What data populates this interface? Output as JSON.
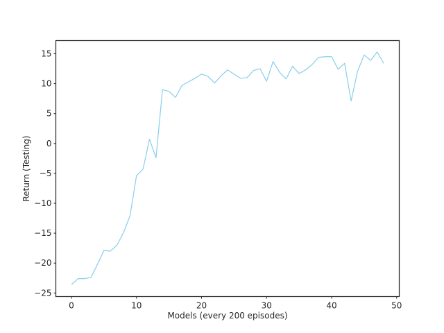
{
  "chart_data": {
    "type": "line",
    "title": "",
    "xlabel": "Models (every 200 episodes)",
    "ylabel": "Return (Testing)",
    "xlim": [
      -2.4,
      50.4
    ],
    "ylim": [
      -25.6,
      17.2
    ],
    "xticks": [
      0,
      10,
      20,
      30,
      40,
      50
    ],
    "yticks": [
      -25,
      -20,
      -15,
      -10,
      -5,
      0,
      5,
      10,
      15
    ],
    "grid": false,
    "legend": "none",
    "line_color": "#87ceeb",
    "series": [
      {
        "x": [
          0,
          1,
          2,
          3,
          4,
          5,
          6,
          7,
          8,
          9,
          10,
          11,
          12,
          13,
          14,
          15,
          16,
          17,
          18,
          19,
          20,
          21,
          22,
          23,
          24,
          25,
          26,
          27,
          28,
          29,
          30,
          31,
          32,
          33,
          34,
          35,
          36,
          37,
          38,
          39,
          40,
          41,
          42,
          43,
          44,
          45,
          46,
          47,
          48
        ],
        "values": [
          -23.6,
          -22.6,
          -22.6,
          -22.4,
          -20.2,
          -17.9,
          -18.0,
          -17.0,
          -14.9,
          -12.1,
          -5.4,
          -4.3,
          0.7,
          -2.4,
          9.0,
          8.7,
          7.7,
          9.7,
          10.3,
          10.9,
          11.6,
          11.2,
          10.1,
          11.3,
          12.3,
          11.6,
          10.9,
          11.0,
          12.2,
          12.5,
          10.4,
          13.7,
          11.9,
          10.8,
          12.9,
          11.7,
          12.3,
          13.2,
          14.4,
          14.5,
          14.5,
          12.4,
          13.4,
          7.1,
          12.1,
          14.8,
          13.9,
          15.3,
          13.4
        ]
      }
    ]
  }
}
